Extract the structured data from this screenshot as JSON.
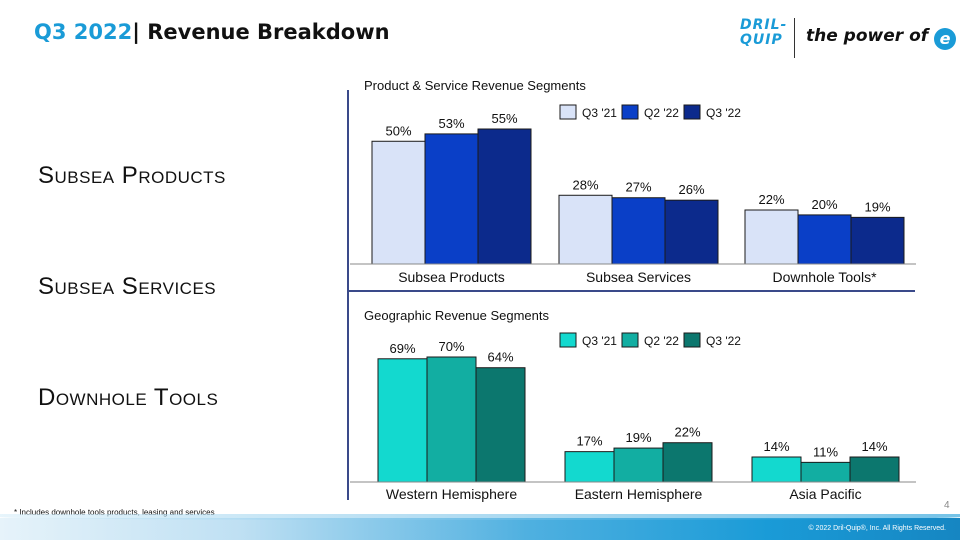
{
  "header": {
    "title_quarter": "Q3 2022",
    "title_sep": "| ",
    "title_text": "Revenue Breakdown"
  },
  "logo": {
    "mark_line1": "DRIL-",
    "mark_line2": "QUIP",
    "tagline": "the power of",
    "icon": "e-icon"
  },
  "segments": [
    "Subsea Products",
    "Subsea Services",
    "Downhole Tools"
  ],
  "footnote": "* Includes downhole tools products, leasing and services",
  "page_number": "4",
  "copyright": "© 2022 Dril-Quip®, Inc. All Rights Reserved.",
  "colors": {
    "accent": "#1a9bd7",
    "divider": "#3a4a8a"
  },
  "chart_data": [
    {
      "type": "bar",
      "title": "Product & Service Revenue Segments",
      "categories": [
        "Subsea Products",
        "Subsea Services",
        "Downhole Tools*"
      ],
      "series": [
        {
          "name": "Q3 '21",
          "values": [
            50,
            28,
            22
          ],
          "labels": [
            "50%",
            "28%",
            "22%"
          ],
          "color": "#d9e3f8"
        },
        {
          "name": "Q2 '22",
          "values": [
            53,
            27,
            20
          ],
          "labels": [
            "53%",
            "27%",
            "20%"
          ],
          "color": "#0a3fc7"
        },
        {
          "name": "Q3 '22",
          "values": [
            55,
            26,
            19
          ],
          "labels": [
            "55%",
            "26%",
            "19%"
          ],
          "color": "#0c2a8c"
        }
      ],
      "ylim": [
        0,
        55
      ],
      "legend": "top-right",
      "grid": false
    },
    {
      "type": "bar",
      "title": "Geographic Revenue Segments",
      "categories": [
        "Western Hemisphere",
        "Eastern Hemisphere",
        "Asia Pacific"
      ],
      "series": [
        {
          "name": "Q3 '21",
          "values": [
            69,
            17,
            14
          ],
          "labels": [
            "69%",
            "17%",
            "14%"
          ],
          "color": "#13d9cf"
        },
        {
          "name": "Q2 '22",
          "values": [
            70,
            19,
            11
          ],
          "labels": [
            "70%",
            "19%",
            "11%"
          ],
          "color": "#12aea2"
        },
        {
          "name": "Q3 '22",
          "values": [
            64,
            22,
            14
          ],
          "labels": [
            "64%",
            "22%",
            "14%"
          ],
          "color": "#0c776e"
        }
      ],
      "ylim": [
        0,
        70
      ],
      "legend": "top-right",
      "grid": false
    }
  ]
}
